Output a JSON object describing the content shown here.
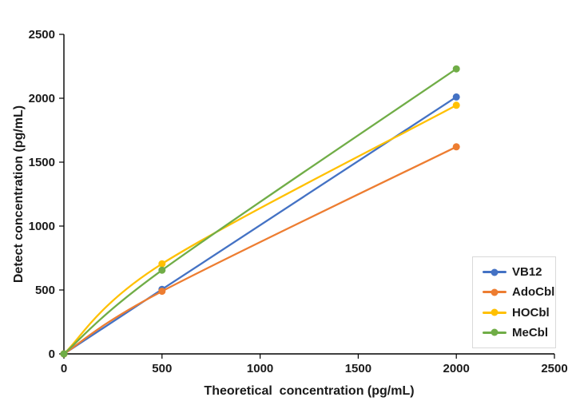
{
  "chart_data": {
    "type": "line",
    "x": [
      0,
      500,
      2000
    ],
    "series": [
      {
        "name": "VB12",
        "color": "#4472C4",
        "values": [
          0,
          505,
          2010
        ]
      },
      {
        "name": "AdoCbl",
        "color": "#ED7D31",
        "values": [
          0,
          490,
          1620
        ]
      },
      {
        "name": "HOCbl",
        "color": "#FFC000",
        "values": [
          0,
          705,
          1945
        ]
      },
      {
        "name": "MeCbl",
        "color": "#70AD47",
        "values": [
          0,
          655,
          2230
        ]
      }
    ],
    "title": "",
    "xlabel": "Theoretical  concentration (pg/mL)",
    "ylabel": "Detect concentration (pg/mL)",
    "xlim": [
      0,
      2500
    ],
    "ylim": [
      0,
      2500
    ],
    "x_ticks": [
      0,
      500,
      1000,
      1500,
      2000,
      2500
    ],
    "y_ticks": [
      0,
      500,
      1000,
      1500,
      2000,
      2500
    ],
    "grid": false,
    "smooth_lines": true,
    "legend_position": "inside-bottom-right",
    "axis_color": "#000000",
    "tick_label_color": "#1a1a1a",
    "legend_border_color": "#d9d9d9",
    "background_color": "#ffffff"
  }
}
